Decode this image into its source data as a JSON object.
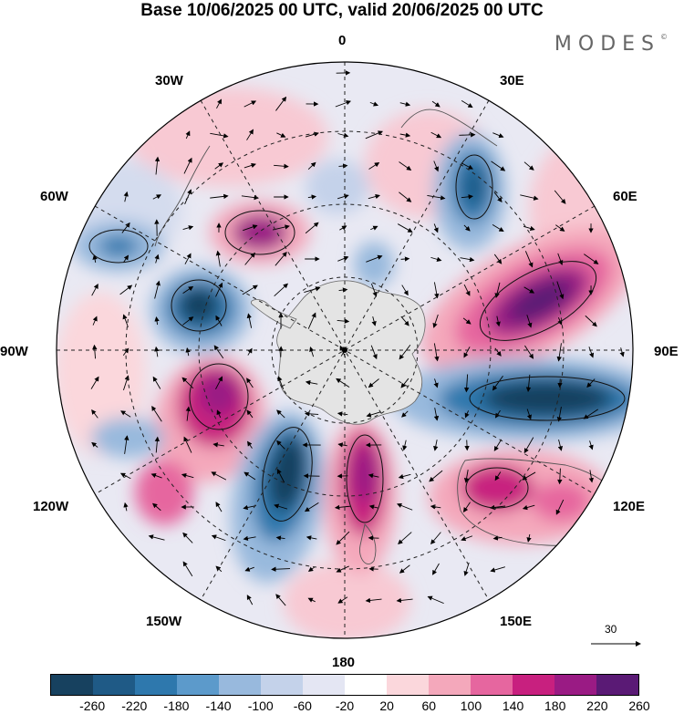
{
  "title": "Base 10/06/2025 00 UTC, valid 20/06/2025 00 UTC",
  "brand": "MODES",
  "brand_mark": "©",
  "longitude_labels": {
    "lon0": "0",
    "lon30E": "30E",
    "lon60E": "60E",
    "lon90E": "90E",
    "lon120E": "120E",
    "lon150E": "150E",
    "lon180": "180",
    "lon150W": "150W",
    "lon120W": "120W",
    "lon90W": "90W",
    "lon60W": "60W",
    "lon30W": "30W"
  },
  "vector_scale_label": "30",
  "colorbar": {
    "labels": [
      "-260",
      "-220",
      "-180",
      "-140",
      "-100",
      "-60",
      "-20",
      "20",
      "60",
      "100",
      "140",
      "180",
      "220",
      "260"
    ],
    "colors": [
      "#17415f",
      "#1f5a86",
      "#2e78ad",
      "#5c9acb",
      "#98b9dd",
      "#c4d2ea",
      "#e4e6f3",
      "#ffffff",
      "#fbd7dc",
      "#f4a8bb",
      "#e6669f",
      "#c8207f",
      "#9a1b84",
      "#5a1a75"
    ]
  }
}
